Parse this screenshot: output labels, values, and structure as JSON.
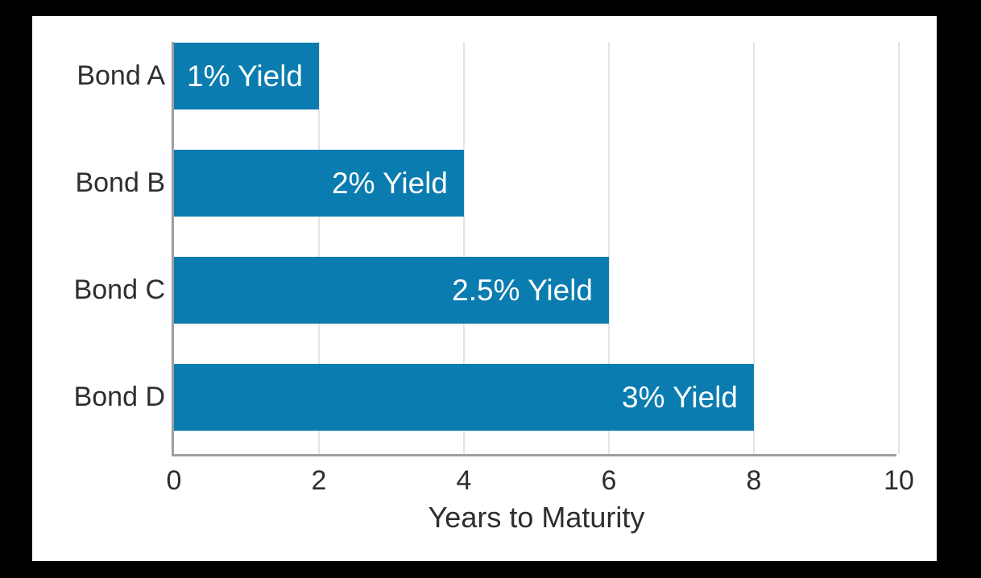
{
  "chart_data": {
    "type": "bar",
    "orientation": "horizontal",
    "title": "",
    "categories": [
      "Bond A",
      "Bond B",
      "Bond C",
      "Bond D"
    ],
    "values": [
      2,
      4,
      6,
      8
    ],
    "bar_labels": [
      "1% Yield",
      "2% Yield",
      "2.5% Yield",
      "3% Yield"
    ],
    "xlabel": "Years to Maturity",
    "ylabel": "",
    "xlim": [
      0,
      10
    ],
    "xticks": [
      0,
      2,
      4,
      6,
      8,
      10
    ],
    "grid": true,
    "legend": false,
    "colors": {
      "bar": "#0b7cb0",
      "bar_label_text": "#ffffff",
      "axis_text": "#2e2e2e",
      "gridline": "#e3e3e3",
      "spine": "#9e9e9e",
      "plot_background": "#ffffff",
      "outer_background": "#000000"
    }
  }
}
